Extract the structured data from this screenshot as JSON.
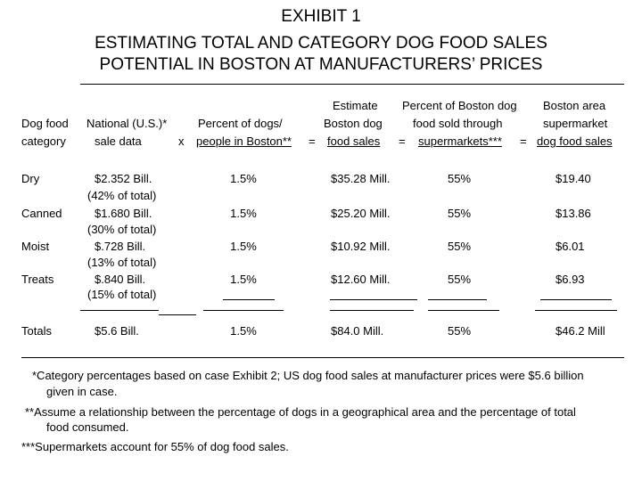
{
  "title": "EXHIBIT 1",
  "subtitle_line1": "ESTIMATING TOTAL AND CATEGORY DOG FOOD SALES",
  "subtitle_line2": "POTENTIAL IN BOSTON AT MANUFACTURERS’ PRICES",
  "headers": {
    "col1": [
      "Dog food",
      "category"
    ],
    "col2": [
      "National (U.S.)*",
      "sale data"
    ],
    "op1": "x",
    "col3": [
      "Percent of dogs/",
      "people in Boston**"
    ],
    "op2": "=",
    "col4": [
      "Estimate",
      "Boston dog",
      "food sales"
    ],
    "op3": "=",
    "col5": [
      "Percent of Boston dog",
      "food sold through",
      "supermarkets***"
    ],
    "op4": "=",
    "col6": [
      "Boston area",
      "supermarket",
      "dog food sales"
    ]
  },
  "rows": [
    {
      "category": "Dry",
      "national": "$2.352 Bill.",
      "national_sub": "(42% of total)",
      "pct_dogs": "1.5%",
      "estimate": "$35.28 Mill.",
      "pct_super": "55%",
      "boston": "$19.40"
    },
    {
      "category": "Canned",
      "national": "$1.680 Bill.",
      "national_sub": "(30% of total)",
      "pct_dogs": "1.5%",
      "estimate": "$25.20 Mill.",
      "pct_super": "55%",
      "boston": "$13.86"
    },
    {
      "category": "Moist",
      "national": "$.728 Bill.",
      "national_sub": "(13% of total)",
      "pct_dogs": "1.5%",
      "estimate": "$10.92 Mill.",
      "pct_super": "55%",
      "boston": "$6.01"
    },
    {
      "category": "Treats",
      "national": "$.840 Bill.",
      "national_sub": "(15% of total)",
      "pct_dogs": "1.5%",
      "estimate": "$12.60 Mill.",
      "pct_super": "55%",
      "boston": "$6.93"
    }
  ],
  "totals": {
    "category": "Totals",
    "national": "$5.6 Bill.",
    "pct_dogs": "1.5%",
    "estimate": "$84.0 Mill.",
    "pct_super": "55%",
    "boston": "$46.2 Mill"
  },
  "footnotes": {
    "f1_line1": "*Category percentages based on case Exhibit 2; US dog food sales at manufacturer prices were $5.6 billion",
    "f1_line2": "given in case.",
    "f2_line1": "**Assume a relationship between the percentage of dogs in a geographical area and the percentage of total",
    "f2_line2": "food consumed.",
    "f3": "***Supermarkets account for 55% of dog food sales."
  }
}
